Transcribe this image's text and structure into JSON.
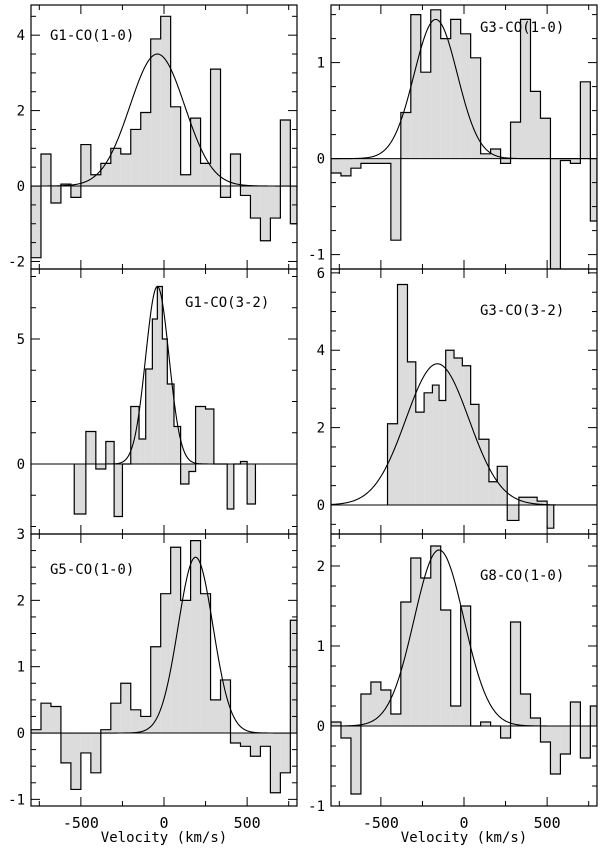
{
  "xlabel_left": "Velocity (km/s)",
  "xlabel_right": "Velocity (km/s)",
  "chart_data": [
    {
      "type": "bar",
      "title": "G1-CO(1-0)",
      "xlim": [
        -800,
        800
      ],
      "ylim": [
        -2.2,
        4.8
      ],
      "yticks": [
        -2,
        0,
        2,
        4
      ],
      "xticks": [
        -500,
        0,
        500
      ],
      "bin_edges": [
        -800,
        -740,
        -680,
        -620,
        -560,
        -500,
        -440,
        -380,
        -320,
        -260,
        -200,
        -140,
        -80,
        -20,
        40,
        100,
        160,
        220,
        280,
        340,
        400,
        460,
        520,
        580,
        640,
        700,
        760,
        800
      ],
      "values": [
        -1.9,
        0.85,
        -0.45,
        0.05,
        -0.3,
        1.1,
        0.3,
        0.6,
        1.0,
        0.85,
        1.5,
        1.95,
        3.9,
        4.5,
        2.1,
        0.3,
        1.8,
        0.6,
        3.1,
        -0.3,
        0.85,
        -0.25,
        -0.85,
        -1.45,
        -0.85,
        1.75,
        -1.0
      ],
      "fit": {
        "amplitude": 3.5,
        "center": -40,
        "sigma": 165
      }
    },
    {
      "type": "bar",
      "title": "G3-CO(1-0)",
      "xlim": [
        -800,
        800
      ],
      "ylim": [
        -1.15,
        1.6
      ],
      "yticks": [
        -1,
        0,
        1
      ],
      "xticks": [
        -500,
        0,
        500
      ],
      "bin_edges": [
        -800,
        -740,
        -680,
        -620,
        -560,
        -500,
        -440,
        -380,
        -320,
        -260,
        -200,
        -140,
        -80,
        -20,
        40,
        100,
        160,
        220,
        280,
        340,
        400,
        460,
        520,
        580,
        640,
        700,
        760,
        800
      ],
      "values": [
        -0.15,
        -0.18,
        -0.1,
        -0.05,
        -0.05,
        -0.05,
        -0.85,
        0.48,
        1.5,
        0.9,
        1.55,
        1.25,
        1.45,
        1.3,
        1.05,
        0.05,
        0.1,
        -0.05,
        0.38,
        1.45,
        0.7,
        0.42,
        -1.15,
        -0.02,
        -0.05,
        0.8,
        -0.65
      ],
      "fit": {
        "amplitude": 1.45,
        "center": -170,
        "sigma": 130
      }
    },
    {
      "type": "bar",
      "title": "G1-CO(3-2)",
      "xlim": [
        -800,
        800
      ],
      "ylim": [
        -2.8,
        7.8
      ],
      "yticks": [
        0,
        5
      ],
      "xticks": [
        -500,
        0,
        500
      ],
      "bin_edges": [
        -540,
        -470,
        -410,
        -350,
        -300,
        -250,
        -200,
        -150,
        -110,
        -70,
        -40,
        -10,
        20,
        60,
        100,
        150,
        190,
        250,
        300,
        340,
        380,
        420,
        460,
        500,
        550
      ],
      "values": [
        -2.0,
        1.3,
        -0.2,
        0.9,
        -2.1,
        0.0,
        2.3,
        1.0,
        3.8,
        5.8,
        7.1,
        5.0,
        3.2,
        1.5,
        -0.8,
        -0.3,
        2.3,
        2.2,
        0.0,
        0.0,
        -1.8,
        0.0,
        0.1,
        -1.6
      ],
      "fit": {
        "amplitude": 7.1,
        "center": -40,
        "sigma": 70
      }
    },
    {
      "type": "bar",
      "title": "G3-CO(3-2)",
      "xlim": [
        -800,
        800
      ],
      "ylim": [
        -0.75,
        6.1
      ],
      "yticks": [
        0,
        2,
        4,
        6
      ],
      "xticks": [
        -500,
        0,
        500
      ],
      "bin_edges": [
        -460,
        -400,
        -340,
        -290,
        -240,
        -190,
        -150,
        -110,
        -60,
        -10,
        40,
        90,
        150,
        200,
        260,
        330,
        370,
        400,
        440,
        500,
        540
      ],
      "values": [
        2.1,
        5.7,
        3.7,
        2.4,
        2.9,
        3.1,
        2.7,
        4.0,
        3.8,
        3.6,
        2.6,
        1.7,
        0.6,
        1.0,
        -0.4,
        0.2,
        0.2,
        0.2,
        0.1,
        -0.6
      ],
      "fit": {
        "amplitude": 3.65,
        "center": -160,
        "sigma": 190
      }
    },
    {
      "type": "bar",
      "title": "G5-CO(1-0)",
      "xlim": [
        -800,
        800
      ],
      "ylim": [
        -1.1,
        3.0
      ],
      "yticks": [
        -1,
        0,
        1,
        2,
        3
      ],
      "xticks": [
        -500,
        0,
        500
      ],
      "bin_edges": [
        -800,
        -740,
        -680,
        -620,
        -560,
        -500,
        -440,
        -380,
        -320,
        -260,
        -200,
        -140,
        -80,
        -20,
        40,
        100,
        160,
        220,
        280,
        340,
        400,
        460,
        520,
        580,
        640,
        700,
        760,
        800
      ],
      "values": [
        0.05,
        0.45,
        0.4,
        -0.45,
        -0.85,
        -0.3,
        -0.6,
        0.05,
        0.45,
        0.75,
        0.35,
        0.25,
        1.3,
        2.1,
        2.8,
        2.0,
        2.9,
        2.1,
        0.5,
        0.8,
        -0.15,
        -0.2,
        -0.35,
        -0.2,
        -0.9,
        -0.6,
        1.7
      ],
      "fit": {
        "amplitude": 2.65,
        "center": 190,
        "sigma": 105
      }
    },
    {
      "type": "bar",
      "title": "G8-CO(1-0)",
      "xlim": [
        -800,
        800
      ],
      "ylim": [
        -1.0,
        2.4
      ],
      "yticks": [
        -1,
        0,
        1,
        2
      ],
      "xticks": [
        -500,
        0,
        500
      ],
      "bin_edges": [
        -800,
        -740,
        -680,
        -620,
        -560,
        -500,
        -440,
        -380,
        -320,
        -260,
        -200,
        -140,
        -80,
        -20,
        40,
        100,
        160,
        220,
        280,
        340,
        400,
        460,
        520,
        580,
        640,
        700,
        760,
        800
      ],
      "values": [
        0.05,
        -0.15,
        -0.85,
        0.4,
        0.55,
        0.45,
        0.15,
        1.55,
        2.1,
        1.85,
        2.25,
        1.45,
        0.25,
        1.5,
        0.0,
        0.05,
        0.0,
        -0.15,
        1.3,
        0.4,
        0.1,
        -0.2,
        -0.6,
        -0.35,
        0.3,
        -0.4,
        0.25
      ],
      "fit": {
        "amplitude": 2.2,
        "center": -150,
        "sigma": 150
      }
    }
  ]
}
